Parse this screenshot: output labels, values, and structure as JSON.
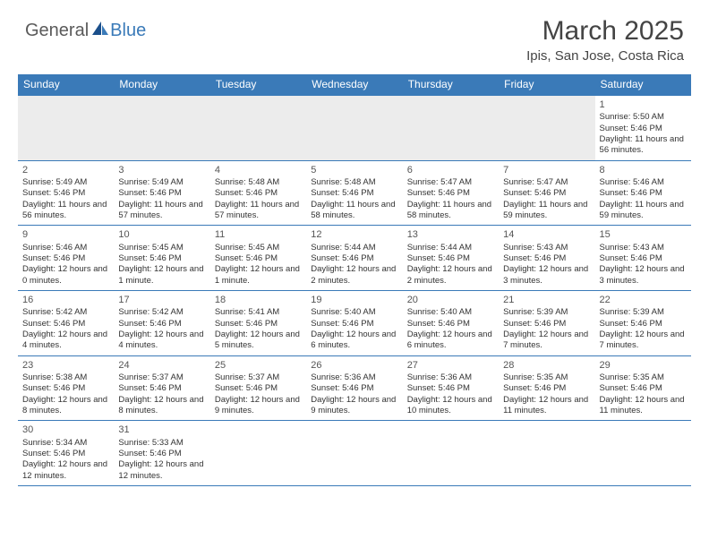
{
  "colors": {
    "header_bg": "#3a7ab8",
    "header_text": "#ffffff",
    "cell_border": "#3a7ab8",
    "empty_bg": "#ececec",
    "body_text": "#333333",
    "logo_gray": "#5a5a5a",
    "logo_blue": "#3a7ab8"
  },
  "logo": {
    "part1": "General",
    "part2": "Blue"
  },
  "title": "March 2025",
  "location": "Ipis, San Jose, Costa Rica",
  "day_headers": [
    "Sunday",
    "Monday",
    "Tuesday",
    "Wednesday",
    "Thursday",
    "Friday",
    "Saturday"
  ],
  "weeks": [
    [
      null,
      null,
      null,
      null,
      null,
      null,
      {
        "n": "1",
        "sr": "Sunrise: 5:50 AM",
        "ss": "Sunset: 5:46 PM",
        "dl": "Daylight: 11 hours and 56 minutes."
      }
    ],
    [
      {
        "n": "2",
        "sr": "Sunrise: 5:49 AM",
        "ss": "Sunset: 5:46 PM",
        "dl": "Daylight: 11 hours and 56 minutes."
      },
      {
        "n": "3",
        "sr": "Sunrise: 5:49 AM",
        "ss": "Sunset: 5:46 PM",
        "dl": "Daylight: 11 hours and 57 minutes."
      },
      {
        "n": "4",
        "sr": "Sunrise: 5:48 AM",
        "ss": "Sunset: 5:46 PM",
        "dl": "Daylight: 11 hours and 57 minutes."
      },
      {
        "n": "5",
        "sr": "Sunrise: 5:48 AM",
        "ss": "Sunset: 5:46 PM",
        "dl": "Daylight: 11 hours and 58 minutes."
      },
      {
        "n": "6",
        "sr": "Sunrise: 5:47 AM",
        "ss": "Sunset: 5:46 PM",
        "dl": "Daylight: 11 hours and 58 minutes."
      },
      {
        "n": "7",
        "sr": "Sunrise: 5:47 AM",
        "ss": "Sunset: 5:46 PM",
        "dl": "Daylight: 11 hours and 59 minutes."
      },
      {
        "n": "8",
        "sr": "Sunrise: 5:46 AM",
        "ss": "Sunset: 5:46 PM",
        "dl": "Daylight: 11 hours and 59 minutes."
      }
    ],
    [
      {
        "n": "9",
        "sr": "Sunrise: 5:46 AM",
        "ss": "Sunset: 5:46 PM",
        "dl": "Daylight: 12 hours and 0 minutes."
      },
      {
        "n": "10",
        "sr": "Sunrise: 5:45 AM",
        "ss": "Sunset: 5:46 PM",
        "dl": "Daylight: 12 hours and 1 minute."
      },
      {
        "n": "11",
        "sr": "Sunrise: 5:45 AM",
        "ss": "Sunset: 5:46 PM",
        "dl": "Daylight: 12 hours and 1 minute."
      },
      {
        "n": "12",
        "sr": "Sunrise: 5:44 AM",
        "ss": "Sunset: 5:46 PM",
        "dl": "Daylight: 12 hours and 2 minutes."
      },
      {
        "n": "13",
        "sr": "Sunrise: 5:44 AM",
        "ss": "Sunset: 5:46 PM",
        "dl": "Daylight: 12 hours and 2 minutes."
      },
      {
        "n": "14",
        "sr": "Sunrise: 5:43 AM",
        "ss": "Sunset: 5:46 PM",
        "dl": "Daylight: 12 hours and 3 minutes."
      },
      {
        "n": "15",
        "sr": "Sunrise: 5:43 AM",
        "ss": "Sunset: 5:46 PM",
        "dl": "Daylight: 12 hours and 3 minutes."
      }
    ],
    [
      {
        "n": "16",
        "sr": "Sunrise: 5:42 AM",
        "ss": "Sunset: 5:46 PM",
        "dl": "Daylight: 12 hours and 4 minutes."
      },
      {
        "n": "17",
        "sr": "Sunrise: 5:42 AM",
        "ss": "Sunset: 5:46 PM",
        "dl": "Daylight: 12 hours and 4 minutes."
      },
      {
        "n": "18",
        "sr": "Sunrise: 5:41 AM",
        "ss": "Sunset: 5:46 PM",
        "dl": "Daylight: 12 hours and 5 minutes."
      },
      {
        "n": "19",
        "sr": "Sunrise: 5:40 AM",
        "ss": "Sunset: 5:46 PM",
        "dl": "Daylight: 12 hours and 6 minutes."
      },
      {
        "n": "20",
        "sr": "Sunrise: 5:40 AM",
        "ss": "Sunset: 5:46 PM",
        "dl": "Daylight: 12 hours and 6 minutes."
      },
      {
        "n": "21",
        "sr": "Sunrise: 5:39 AM",
        "ss": "Sunset: 5:46 PM",
        "dl": "Daylight: 12 hours and 7 minutes."
      },
      {
        "n": "22",
        "sr": "Sunrise: 5:39 AM",
        "ss": "Sunset: 5:46 PM",
        "dl": "Daylight: 12 hours and 7 minutes."
      }
    ],
    [
      {
        "n": "23",
        "sr": "Sunrise: 5:38 AM",
        "ss": "Sunset: 5:46 PM",
        "dl": "Daylight: 12 hours and 8 minutes."
      },
      {
        "n": "24",
        "sr": "Sunrise: 5:37 AM",
        "ss": "Sunset: 5:46 PM",
        "dl": "Daylight: 12 hours and 8 minutes."
      },
      {
        "n": "25",
        "sr": "Sunrise: 5:37 AM",
        "ss": "Sunset: 5:46 PM",
        "dl": "Daylight: 12 hours and 9 minutes."
      },
      {
        "n": "26",
        "sr": "Sunrise: 5:36 AM",
        "ss": "Sunset: 5:46 PM",
        "dl": "Daylight: 12 hours and 9 minutes."
      },
      {
        "n": "27",
        "sr": "Sunrise: 5:36 AM",
        "ss": "Sunset: 5:46 PM",
        "dl": "Daylight: 12 hours and 10 minutes."
      },
      {
        "n": "28",
        "sr": "Sunrise: 5:35 AM",
        "ss": "Sunset: 5:46 PM",
        "dl": "Daylight: 12 hours and 11 minutes."
      },
      {
        "n": "29",
        "sr": "Sunrise: 5:35 AM",
        "ss": "Sunset: 5:46 PM",
        "dl": "Daylight: 12 hours and 11 minutes."
      }
    ],
    [
      {
        "n": "30",
        "sr": "Sunrise: 5:34 AM",
        "ss": "Sunset: 5:46 PM",
        "dl": "Daylight: 12 hours and 12 minutes."
      },
      {
        "n": "31",
        "sr": "Sunrise: 5:33 AM",
        "ss": "Sunset: 5:46 PM",
        "dl": "Daylight: 12 hours and 12 minutes."
      },
      null,
      null,
      null,
      null,
      null
    ]
  ]
}
